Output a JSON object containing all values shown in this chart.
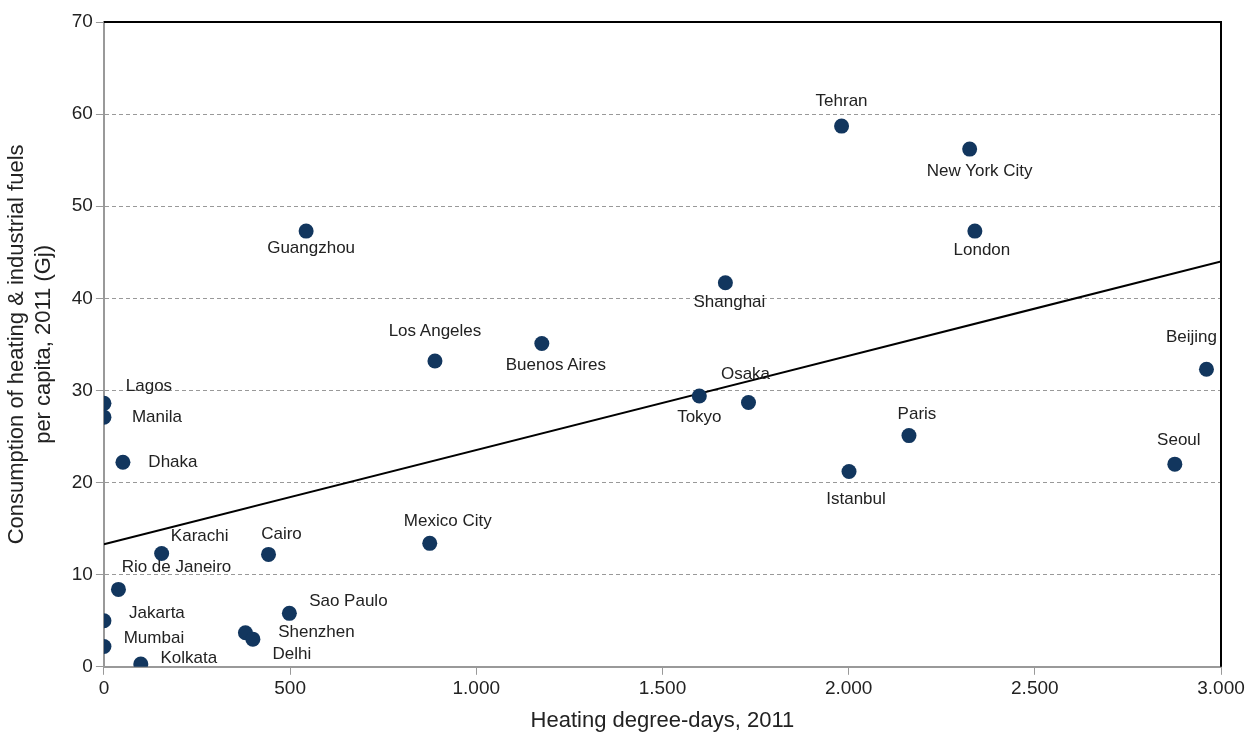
{
  "chart_data": {
    "type": "scatter",
    "xlabel": "Heating degree-days, 2011",
    "ylabel": "Consumption of heating & industrial fuels\nper capita, 2011 (Gj)",
    "xlim": [
      0,
      3000
    ],
    "xticks": [
      0,
      500,
      {
        "value": 1000,
        "label": "1.000"
      },
      {
        "value": 1500,
        "label": "1.500"
      },
      {
        "value": 2000,
        "label": "2.000"
      },
      {
        "value": 2500,
        "label": "2.500"
      },
      {
        "value": 3000,
        "label": "3.000"
      }
    ],
    "ylim": [
      0,
      70
    ],
    "yticks": [
      0,
      10,
      20,
      30,
      40,
      50,
      60,
      70
    ],
    "grid": "y",
    "legend": false,
    "marker": "circle",
    "series": [
      {
        "color": "#12365e",
        "x": [
          0,
          0,
          51,
          155,
          442,
          875,
          39,
          0,
          0,
          99,
          498,
          380,
          400,
          543,
          889,
          1176,
          1669,
          1981,
          2325,
          2339,
          1599,
          1731,
          2162,
          2001,
          2876,
          2961
        ],
        "values": [
          28.6,
          27.1,
          22.2,
          12.3,
          12.2,
          13.4,
          8.4,
          5.0,
          2.2,
          0.3,
          5.8,
          3.7,
          3.0,
          47.3,
          33.2,
          35.1,
          41.7,
          58.7,
          56.2,
          47.3,
          29.4,
          28.7,
          25.1,
          21.2,
          22.0,
          32.3
        ]
      },
      {
        "type": "line",
        "color": "#000000",
        "marker": "none",
        "x": [
          0,
          3000
        ],
        "values": [
          13.3,
          44.0
        ]
      }
    ],
    "annotations": [
      {
        "text": "Lagos",
        "x": 0,
        "y": 28.6
      },
      {
        "text": "Manila",
        "x": 0,
        "y": 27.1
      },
      {
        "text": "Dhaka",
        "x": 51,
        "y": 22.2
      },
      {
        "text": "Karachi",
        "x": 155,
        "y": 12.3
      },
      {
        "text": "Cairo",
        "x": 442,
        "y": 12.2
      },
      {
        "text": "Mexico City",
        "x": 875,
        "y": 13.4
      },
      {
        "text": "Rio de Janeiro",
        "x": 39,
        "y": 8.4
      },
      {
        "text": "Jakarta",
        "x": 0,
        "y": 5.0
      },
      {
        "text": "Mumbai",
        "x": 0,
        "y": 2.2
      },
      {
        "text": "Kolkata",
        "x": 99,
        "y": 0.3
      },
      {
        "text": "Sao Paulo",
        "x": 498,
        "y": 5.8
      },
      {
        "text": "Shenzhen",
        "x": 380,
        "y": 3.7
      },
      {
        "text": "Delhi",
        "x": 400,
        "y": 3.0
      },
      {
        "text": "Guangzhou",
        "x": 543,
        "y": 47.3
      },
      {
        "text": "Los Angeles",
        "x": 889,
        "y": 33.2
      },
      {
        "text": "Buenos Aires",
        "x": 1176,
        "y": 35.1
      },
      {
        "text": "Shanghai",
        "x": 1669,
        "y": 41.7
      },
      {
        "text": "Tehran",
        "x": 1981,
        "y": 58.7
      },
      {
        "text": "New York City",
        "x": 2325,
        "y": 56.2
      },
      {
        "text": "London",
        "x": 2339,
        "y": 47.3
      },
      {
        "text": "Tokyo",
        "x": 1599,
        "y": 29.4
      },
      {
        "text": "Osaka",
        "x": 1731,
        "y": 28.7
      },
      {
        "text": "Paris",
        "x": 2162,
        "y": 25.1
      },
      {
        "text": "Istanbul",
        "x": 2001,
        "y": 21.2
      },
      {
        "text": "Seoul",
        "x": 2876,
        "y": 22.0
      },
      {
        "text": "Beijing",
        "x": 2961,
        "y": 32.3
      }
    ]
  }
}
